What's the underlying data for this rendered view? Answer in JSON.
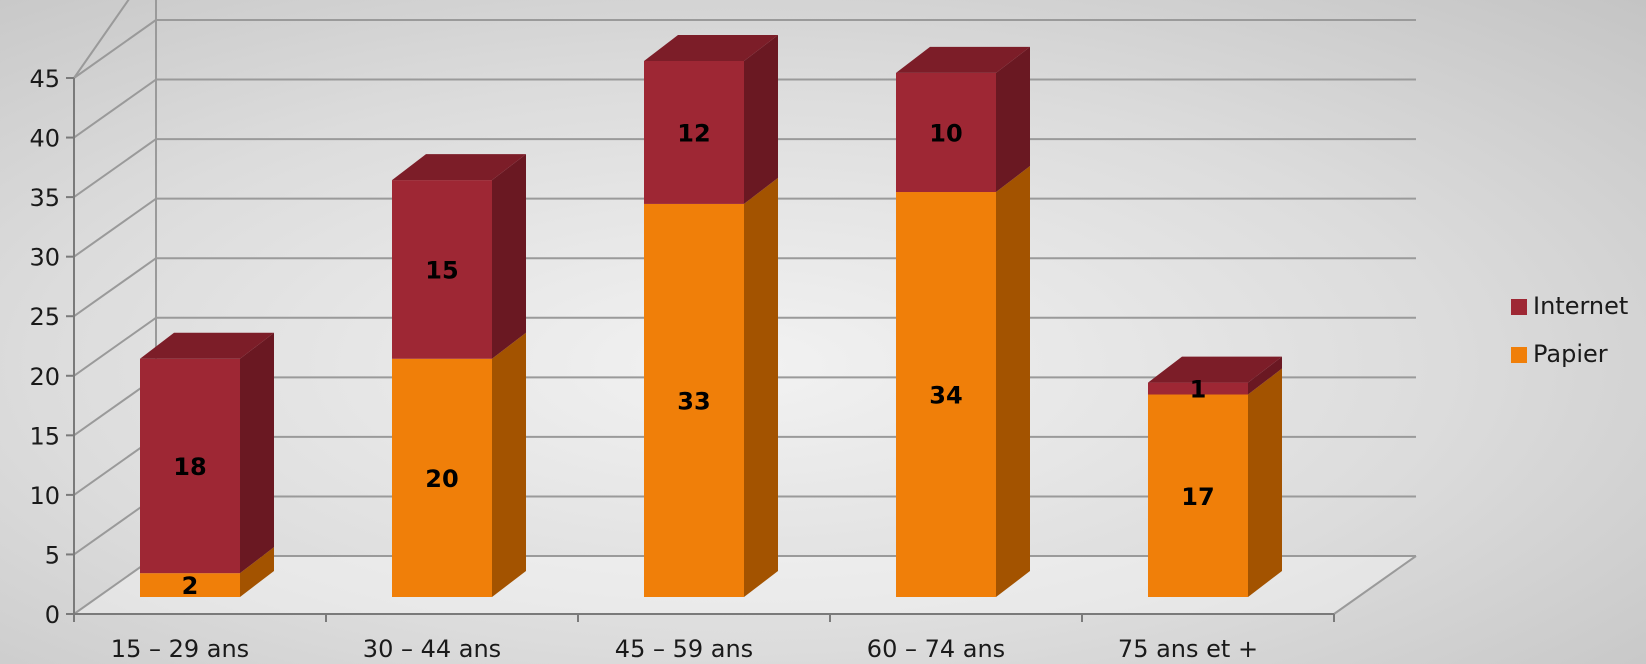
{
  "chart_data": {
    "type": "bar",
    "stacked": true,
    "style": "3d",
    "categories": [
      "15 – 29 ans",
      "30 – 44 ans",
      "45 – 59 ans",
      "60 – 74 ans",
      "75 ans et +"
    ],
    "series": [
      {
        "name": "Papier",
        "values": [
          2,
          20,
          33,
          34,
          17
        ]
      },
      {
        "name": "Internet",
        "values": [
          18,
          15,
          12,
          10,
          1
        ]
      }
    ],
    "ylim": [
      0,
      45
    ],
    "yticks": [
      0,
      5,
      10,
      15,
      20,
      25,
      30,
      35,
      40,
      45
    ],
    "grid": true,
    "legend": "right",
    "colors": {
      "Papier": "#f07f09",
      "Internet": "#9e2734"
    },
    "title": "",
    "xlabel": "",
    "ylabel": ""
  }
}
